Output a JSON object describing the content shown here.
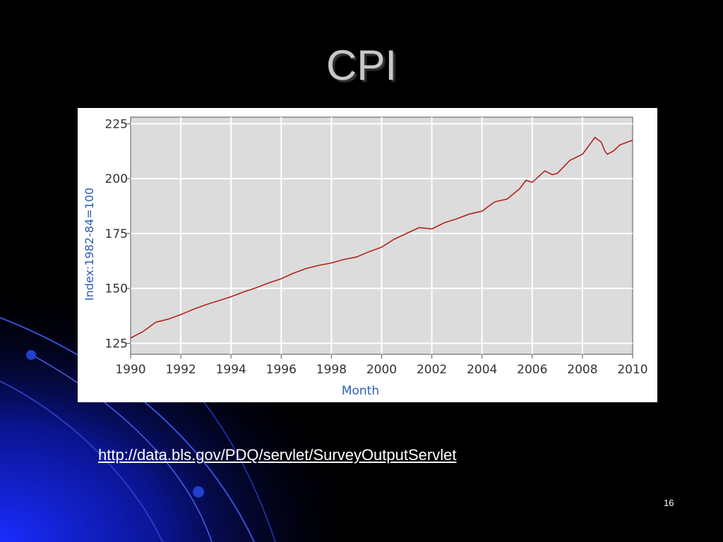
{
  "slide": {
    "title": "CPI",
    "link": "http://data.bls.gov/PDQ/servlet/SurveyOutputServlet",
    "page_number": "16"
  },
  "colors": {
    "background": "#000000",
    "decor_blue": "#1020c8",
    "plot_background": "#dcdcdc",
    "series_line": "#b22222",
    "axis_label": "#2c5fb4"
  },
  "chart_data": {
    "type": "line",
    "title": "",
    "xlabel": "Month",
    "ylabel": "Index:1982-84=100",
    "xlim": [
      1990,
      2010
    ],
    "ylim": [
      120,
      228
    ],
    "x_ticks": [
      1990,
      1992,
      1994,
      1996,
      1998,
      2000,
      2002,
      2004,
      2006,
      2008,
      2010
    ],
    "y_ticks": [
      125,
      150,
      175,
      200,
      225
    ],
    "grid": true,
    "legend": "none",
    "series": [
      {
        "values": [
          [
            1990.0,
            127.4
          ],
          [
            1990.5,
            130.4
          ],
          [
            1991.0,
            134.6
          ],
          [
            1991.5,
            136.0
          ],
          [
            1992.0,
            138.1
          ],
          [
            1992.5,
            140.5
          ],
          [
            1993.0,
            142.6
          ],
          [
            1993.5,
            144.4
          ],
          [
            1994.0,
            146.2
          ],
          [
            1994.5,
            148.4
          ],
          [
            1995.0,
            150.3
          ],
          [
            1995.5,
            152.5
          ],
          [
            1996.0,
            154.4
          ],
          [
            1996.5,
            157.0
          ],
          [
            1997.0,
            159.1
          ],
          [
            1997.5,
            160.5
          ],
          [
            1998.0,
            161.6
          ],
          [
            1998.5,
            163.2
          ],
          [
            1999.0,
            164.3
          ],
          [
            1999.5,
            166.7
          ],
          [
            2000.0,
            168.8
          ],
          [
            2000.5,
            172.4
          ],
          [
            2001.0,
            175.1
          ],
          [
            2001.5,
            177.7
          ],
          [
            2002.0,
            177.1
          ],
          [
            2002.5,
            179.9
          ],
          [
            2003.0,
            181.7
          ],
          [
            2003.5,
            183.9
          ],
          [
            2004.0,
            185.2
          ],
          [
            2004.5,
            189.4
          ],
          [
            2005.0,
            190.7
          ],
          [
            2005.5,
            195.4
          ],
          [
            2005.75,
            199.2
          ],
          [
            2006.0,
            198.3
          ],
          [
            2006.5,
            203.5
          ],
          [
            2006.8,
            201.8
          ],
          [
            2007.0,
            202.4
          ],
          [
            2007.5,
            208.3
          ],
          [
            2008.0,
            211.1
          ],
          [
            2008.5,
            218.8
          ],
          [
            2008.75,
            216.6
          ],
          [
            2008.9,
            212.4
          ],
          [
            2009.0,
            211.1
          ],
          [
            2009.25,
            212.7
          ],
          [
            2009.5,
            215.4
          ],
          [
            2010.0,
            217.5
          ]
        ]
      }
    ]
  }
}
